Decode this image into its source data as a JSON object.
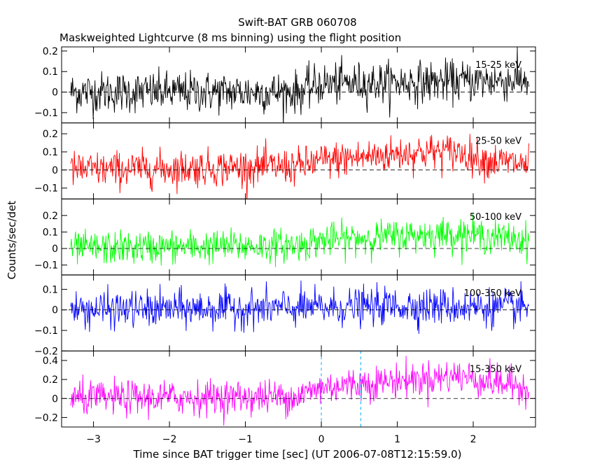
{
  "title": "Swift-BAT GRB 060708",
  "subtitle": "Maskweighted Lightcurve (8 ms binning) using the flight position",
  "chart_data": {
    "type": "line",
    "title": "Swift-BAT GRB 060708",
    "subtitle": "Maskweighted Lightcurve (8 ms binning) using the flight position",
    "xlabel": "Time since BAT trigger time [sec] (UT 2006-07-08T12:15:59.0)",
    "ylabel": "Counts/sec/det",
    "xlim": [
      -3.42,
      2.82
    ],
    "x_ticks": [
      -3,
      -2,
      -1,
      0,
      1,
      2
    ],
    "x_tick_labels": [
      "−3",
      "−2",
      "−1",
      "0",
      "1",
      "2"
    ],
    "bin_width_sec": 0.008,
    "x_range": [
      -3.3,
      2.74
    ],
    "vertical_markers_x": [
      0,
      0.52
    ],
    "panels": [
      {
        "name": "15-25 keV",
        "color": "#000000",
        "ylim": [
          -0.15,
          0.22
        ],
        "y_ticks": [
          -0.1,
          0,
          0.1,
          0.2
        ],
        "y_tick_labels": [
          "−0.1",
          "0",
          "0.1",
          "0.2"
        ],
        "noise_sigma": 0.05,
        "baseline_points": [
          [
            -3.3,
            0.0
          ],
          [
            -0.3,
            0.0
          ],
          [
            0.0,
            0.04
          ],
          [
            1.5,
            0.05
          ],
          [
            2.74,
            0.06
          ]
        ]
      },
      {
        "name": "25-50 keV",
        "color": "#ff0000",
        "ylim": [
          -0.16,
          0.26
        ],
        "y_ticks": [
          -0.1,
          0,
          0.1,
          0.2
        ],
        "y_tick_labels": [
          "−0.1",
          "0",
          "0.1",
          "0.2"
        ],
        "noise_sigma": 0.05,
        "baseline_points": [
          [
            -3.3,
            0.0
          ],
          [
            -0.3,
            0.02
          ],
          [
            0.0,
            0.05
          ],
          [
            1.3,
            0.1
          ],
          [
            1.8,
            0.1
          ],
          [
            2.2,
            0.05
          ],
          [
            2.74,
            0.03
          ]
        ]
      },
      {
        "name": "50-100 keV",
        "color": "#00ff00",
        "ylim": [
          -0.16,
          0.3
        ],
        "y_ticks": [
          -0.1,
          0,
          0.1,
          0.2
        ],
        "y_tick_labels": [
          "−0.1",
          "0",
          "0.1",
          "0.2"
        ],
        "noise_sigma": 0.05,
        "baseline_points": [
          [
            -3.3,
            0.0
          ],
          [
            -0.3,
            0.02
          ],
          [
            0.0,
            0.05
          ],
          [
            1.2,
            0.08
          ],
          [
            1.8,
            0.09
          ],
          [
            2.74,
            0.05
          ]
        ]
      },
      {
        "name": "100-350 keV",
        "color": "#0000ff",
        "ylim": [
          -0.2,
          0.17
        ],
        "y_ticks": [
          -0.2,
          -0.1,
          0,
          0.1
        ],
        "y_tick_labels": [
          "−0.2",
          "−0.1",
          "0",
          "0.1"
        ],
        "noise_sigma": 0.045,
        "baseline_points": [
          [
            -3.3,
            0.0
          ],
          [
            0.0,
            0.01
          ],
          [
            1.0,
            0.02
          ],
          [
            2.74,
            0.01
          ]
        ]
      },
      {
        "name": "15-350 keV",
        "color": "#ff00ff",
        "ylim": [
          -0.3,
          0.5
        ],
        "y_ticks": [
          -0.2,
          0,
          0.2,
          0.4
        ],
        "y_tick_labels": [
          "−0.2",
          "0",
          "0.2",
          "0.4"
        ],
        "noise_sigma": 0.09,
        "baseline_points": [
          [
            -3.3,
            0.0
          ],
          [
            -0.3,
            0.02
          ],
          [
            0.0,
            0.12
          ],
          [
            1.2,
            0.2
          ],
          [
            1.8,
            0.24
          ],
          [
            2.2,
            0.18
          ],
          [
            2.74,
            0.12
          ]
        ]
      }
    ]
  }
}
